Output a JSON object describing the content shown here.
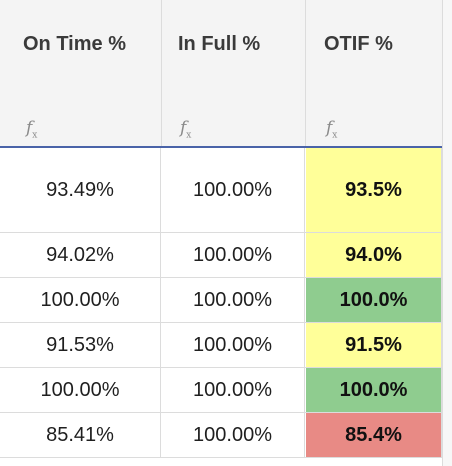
{
  "columns": [
    {
      "title": "On Time %",
      "formula_icon": "fx-icon"
    },
    {
      "title": "In Full %",
      "formula_icon": "fx-icon"
    },
    {
      "title": "OTIF %",
      "formula_icon": "fx-icon"
    }
  ],
  "rows": [
    {
      "on_time": "93.49%",
      "in_full": "100.00%",
      "otif": "93.5%",
      "otif_color": "#ffff99"
    },
    {
      "on_time": "94.02%",
      "in_full": "100.00%",
      "otif": "94.0%",
      "otif_color": "#ffff99"
    },
    {
      "on_time": "100.00%",
      "in_full": "100.00%",
      "otif": "100.0%",
      "otif_color": "#8fcc8f"
    },
    {
      "on_time": "91.53%",
      "in_full": "100.00%",
      "otif": "91.5%",
      "otif_color": "#ffff99"
    },
    {
      "on_time": "100.00%",
      "in_full": "100.00%",
      "otif": "100.0%",
      "otif_color": "#8fcc8f"
    },
    {
      "on_time": "85.41%",
      "in_full": "100.00%",
      "otif": "85.4%",
      "otif_color": "#e88a85"
    }
  ],
  "colors": {
    "header_bg": "#f4f4f4",
    "header_underline": "#4a63a8",
    "gridline": "#dcdcdc"
  }
}
